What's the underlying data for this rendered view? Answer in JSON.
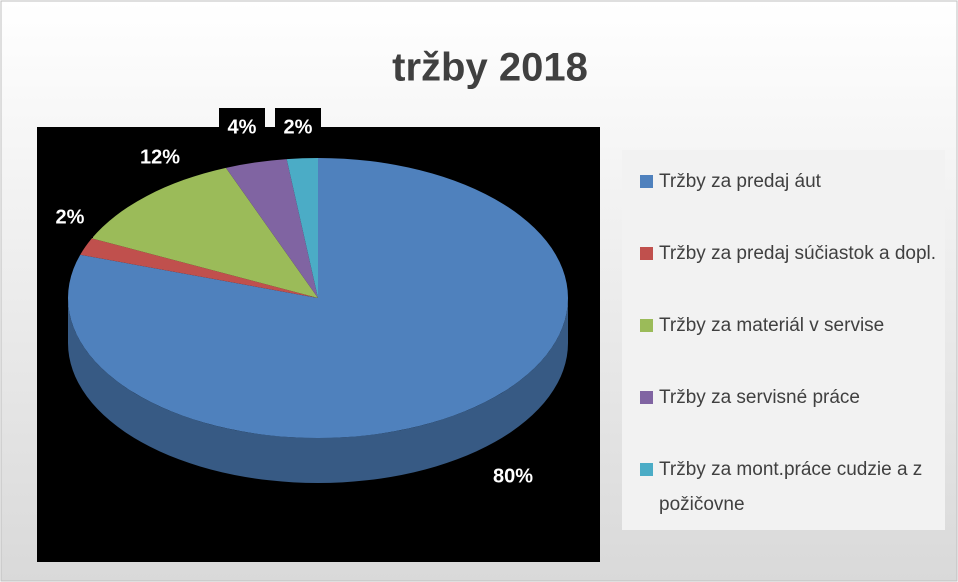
{
  "chart_data": {
    "type": "pie",
    "title": "tržby 2018",
    "categories": [
      "Tržby za predaj áut",
      "Tržby za predaj súčiastok a dopl.",
      "Tržby za materiál v servise",
      "Tržby za servisné práce",
      "Tržby za mont.práce cudzie a z požičovne"
    ],
    "values": [
      80,
      2,
      12,
      4,
      2
    ],
    "value_labels": [
      "80%",
      "2%",
      "12%",
      "4%",
      "2%"
    ],
    "colors": [
      "#4f81bd",
      "#c0504d",
      "#9bbb59",
      "#8064a2",
      "#4bacc6"
    ],
    "legend": "right"
  }
}
